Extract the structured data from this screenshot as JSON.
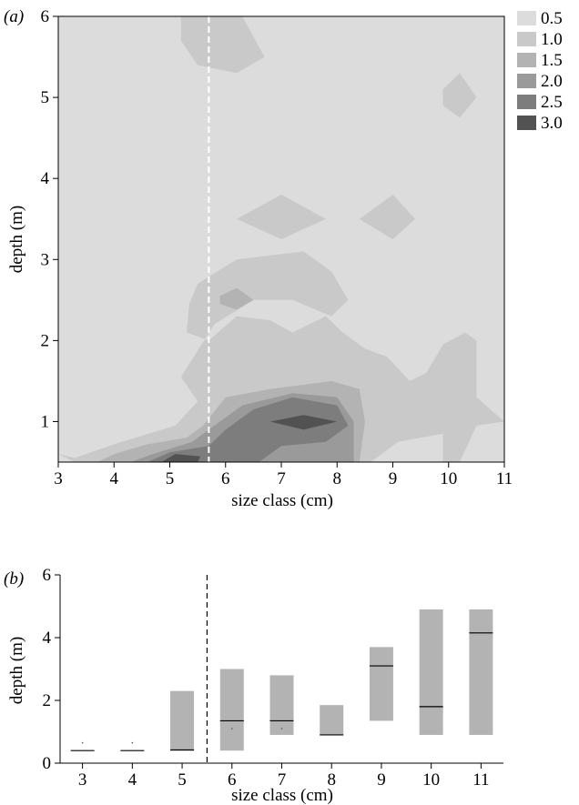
{
  "chart_data": [
    {
      "type": "heatmap",
      "panel_label": "(a)",
      "title": "",
      "xlabel": "size class (cm)",
      "ylabel": "depth (m)",
      "xlim": [
        3,
        11
      ],
      "ylim": [
        0.5,
        6
      ],
      "x_ticks": [
        3,
        4,
        5,
        6,
        7,
        8,
        9,
        10,
        11
      ],
      "y_ticks": [
        1,
        2,
        3,
        4,
        5,
        6
      ],
      "legend_position": "top-right",
      "legend": [
        {
          "label": "0.5",
          "color": "#dcdcdc"
        },
        {
          "label": "1.0",
          "color": "#c9c9c9"
        },
        {
          "label": "1.5",
          "color": "#b3b3b3"
        },
        {
          "label": "2.0",
          "color": "#9a9a9a"
        },
        {
          "label": "2.5",
          "color": "#7d7d7d"
        },
        {
          "label": "3.0",
          "color": "#525252"
        }
      ],
      "divider_x": 5.7,
      "divider_style": "white-dashed",
      "regions": [
        {
          "level": 1,
          "color": "#c9c9c9",
          "points": [
            [
              5.2,
              6
            ],
            [
              6.3,
              6
            ],
            [
              6.7,
              5.5
            ],
            [
              6.2,
              5.3
            ],
            [
              5.5,
              5.4
            ],
            [
              5.2,
              5.7
            ]
          ]
        },
        {
          "level": 1,
          "color": "#c9c9c9",
          "points": [
            [
              9.9,
              5.1
            ],
            [
              10.2,
              5.3
            ],
            [
              10.5,
              5.0
            ],
            [
              10.2,
              4.75
            ],
            [
              9.9,
              4.9
            ]
          ]
        },
        {
          "level": 1,
          "color": "#c9c9c9",
          "points": [
            [
              6.2,
              3.5
            ],
            [
              7.0,
              3.8
            ],
            [
              7.8,
              3.5
            ],
            [
              7.0,
              3.25
            ]
          ]
        },
        {
          "level": 1,
          "color": "#c9c9c9",
          "points": [
            [
              8.4,
              3.5
            ],
            [
              9.0,
              3.8
            ],
            [
              9.4,
              3.5
            ],
            [
              9.0,
              3.25
            ]
          ]
        },
        {
          "level": 1,
          "color": "#c9c9c9",
          "points": [
            [
              3,
              0.6
            ],
            [
              3.3,
              0.5
            ],
            [
              8.6,
              0.5
            ],
            [
              9.1,
              0.75
            ],
            [
              9.9,
              0.85
            ],
            [
              9.9,
              0.5
            ],
            [
              10.2,
              0.5
            ],
            [
              10.5,
              0.95
            ],
            [
              11,
              1.0
            ],
            [
              10.5,
              1.3
            ],
            [
              10.5,
              2.0
            ],
            [
              10.3,
              2.1
            ],
            [
              9.9,
              1.95
            ],
            [
              9.6,
              1.6
            ],
            [
              9.3,
              1.5
            ],
            [
              8.9,
              1.8
            ],
            [
              8.5,
              1.9
            ],
            [
              8.1,
              2.1
            ],
            [
              7.8,
              2.3
            ],
            [
              7.2,
              2.1
            ],
            [
              6.8,
              2.25
            ],
            [
              6.2,
              2.3
            ],
            [
              5.7,
              2.0
            ],
            [
              5.3,
              2.1
            ],
            [
              5.35,
              2.45
            ],
            [
              5.5,
              2.7
            ],
            [
              6.2,
              3.0
            ],
            [
              7.4,
              3.1
            ],
            [
              7.9,
              2.85
            ],
            [
              8.2,
              2.5
            ],
            [
              7.9,
              2.3
            ],
            [
              7.2,
              2.5
            ],
            [
              6.5,
              2.5
            ],
            [
              5.8,
              2.2
            ],
            [
              5.2,
              1.55
            ],
            [
              5.5,
              1.25
            ],
            [
              5.1,
              0.95
            ],
            [
              4.0,
              0.72
            ],
            [
              3.3,
              0.55
            ]
          ]
        },
        {
          "level": 2,
          "color": "#b3b3b3",
          "points": [
            [
              3.7,
              0.5
            ],
            [
              8.4,
              0.5
            ],
            [
              8.5,
              1.0
            ],
            [
              8.4,
              1.4
            ],
            [
              7.9,
              1.5
            ],
            [
              6.8,
              1.4
            ],
            [
              6.0,
              1.3
            ],
            [
              5.6,
              0.95
            ],
            [
              5.3,
              0.8
            ],
            [
              4.6,
              0.72
            ],
            [
              4.0,
              0.6
            ]
          ]
        },
        {
          "level": 2,
          "color": "#b3b3b3",
          "points": [
            [
              5.9,
              2.55
            ],
            [
              6.2,
              2.65
            ],
            [
              6.5,
              2.5
            ],
            [
              6.2,
              2.38
            ],
            [
              5.9,
              2.45
            ]
          ]
        },
        {
          "level": 3,
          "color": "#9a9a9a",
          "points": [
            [
              4.3,
              0.5
            ],
            [
              8.3,
              0.5
            ],
            [
              8.3,
              1.0
            ],
            [
              8.0,
              1.3
            ],
            [
              7.2,
              1.35
            ],
            [
              6.3,
              1.2
            ],
            [
              5.8,
              0.95
            ],
            [
              5.4,
              0.75
            ],
            [
              4.7,
              0.6
            ]
          ]
        },
        {
          "level": 4,
          "color": "#7d7d7d",
          "points": [
            [
              4.6,
              0.5
            ],
            [
              6.6,
              0.5
            ],
            [
              7.0,
              0.7
            ],
            [
              7.8,
              0.75
            ],
            [
              8.2,
              0.95
            ],
            [
              8.0,
              1.2
            ],
            [
              7.2,
              1.3
            ],
            [
              6.5,
              1.15
            ],
            [
              6.0,
              0.9
            ],
            [
              5.7,
              0.7
            ],
            [
              5.0,
              0.62
            ]
          ]
        },
        {
          "level": 5,
          "color": "#525252",
          "points": [
            [
              6.8,
              1.0
            ],
            [
              7.4,
              1.08
            ],
            [
              8.0,
              1.0
            ],
            [
              7.4,
              0.9
            ]
          ]
        },
        {
          "level": 5,
          "color": "#525252",
          "points": [
            [
              4.85,
              0.5
            ],
            [
              5.5,
              0.5
            ],
            [
              5.55,
              0.57
            ],
            [
              5.1,
              0.6
            ]
          ]
        }
      ]
    },
    {
      "type": "bar",
      "panel_label": "(b)",
      "title": "",
      "xlabel": "size class (cm)",
      "ylabel": "depth (m)",
      "categories": [
        "3",
        "4",
        "5",
        "6",
        "7",
        "8",
        "9",
        "10",
        "11"
      ],
      "x_ticks": [
        3,
        4,
        5,
        6,
        7,
        8,
        9,
        10,
        11
      ],
      "y_ticks": [
        0,
        2,
        4,
        6
      ],
      "ylim": [
        0,
        6
      ],
      "divider_x": 5.5,
      "divider_style": "black-dashed",
      "ranges": [
        {
          "x": 3,
          "low": 0.4,
          "high": 0.4,
          "median": 0.4
        },
        {
          "x": 4,
          "low": 0.4,
          "high": 0.4,
          "median": 0.4
        },
        {
          "x": 5,
          "low": 0.4,
          "high": 2.3,
          "median": 0.42
        },
        {
          "x": 6,
          "low": 0.4,
          "high": 3.0,
          "median": 1.35
        },
        {
          "x": 7,
          "low": 0.9,
          "high": 2.8,
          "median": 1.35
        },
        {
          "x": 8,
          "low": 0.9,
          "high": 1.85,
          "median": 0.9
        },
        {
          "x": 9,
          "low": 1.35,
          "high": 3.7,
          "median": 3.1
        },
        {
          "x": 10,
          "low": 0.9,
          "high": 4.9,
          "median": 1.8
        },
        {
          "x": 11,
          "low": 0.9,
          "high": 4.9,
          "median": 4.15
        }
      ],
      "points": [
        {
          "x": 3,
          "y": 0.65
        },
        {
          "x": 4,
          "y": 0.65
        },
        {
          "x": 6,
          "y": 1.1
        },
        {
          "x": 7,
          "y": 1.1
        }
      ],
      "bar_color": "#b3b3b3",
      "median_color": "#000000"
    }
  ]
}
